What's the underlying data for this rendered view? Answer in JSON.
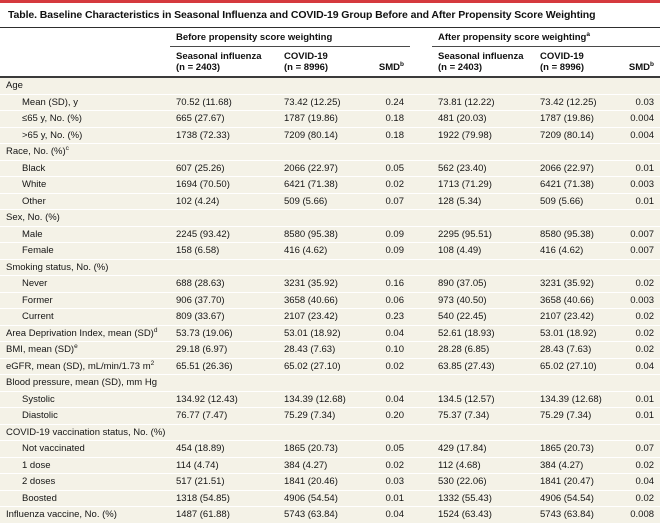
{
  "colors": {
    "accent_red": "#d5393e",
    "row_background": "#f4f2e7",
    "rule_dark": "#3b3b3b"
  },
  "title": "Table. Baseline Characteristics in Seasonal Influenza and COVID-19 Group Before and After Propensity Score Weighting",
  "header": {
    "before_group": "Before propensity score weighting",
    "after_group": "After propensity score weighting",
    "after_group_sup": "a",
    "influenza_line1": "Seasonal influenza",
    "influenza_line2": "(n = 2403)",
    "covid_line1": "COVID-19",
    "covid_line2": "(n = 8996)",
    "smd": "SMD",
    "smd_sup": "b"
  },
  "rows": [
    {
      "type": "section",
      "label": "Age"
    },
    {
      "type": "data",
      "indent": 1,
      "label": "Mean (SD), y",
      "values": [
        "70.52 (11.68)",
        "73.42 (12.25)",
        "0.24",
        "73.81 (12.22)",
        "73.42 (12.25)",
        "0.03"
      ]
    },
    {
      "type": "data",
      "indent": 1,
      "label": "≤65 y, No. (%)",
      "values": [
        "665 (27.67)",
        "1787 (19.86)",
        "0.18",
        "481 (20.03)",
        "1787 (19.86)",
        "0.004"
      ]
    },
    {
      "type": "data",
      "indent": 1,
      "label": ">65 y, No. (%)",
      "values": [
        "1738 (72.33)",
        "7209 (80.14)",
        "0.18",
        "1922 (79.98)",
        "7209 (80.14)",
        "0.004"
      ]
    },
    {
      "type": "section",
      "label": "Race, No. (%)",
      "sup": "c"
    },
    {
      "type": "data",
      "indent": 1,
      "label": "Black",
      "values": [
        "607 (25.26)",
        "2066 (22.97)",
        "0.05",
        "562 (23.40)",
        "2066 (22.97)",
        "0.01"
      ]
    },
    {
      "type": "data",
      "indent": 1,
      "label": "White",
      "values": [
        "1694 (70.50)",
        "6421 (71.38)",
        "0.02",
        "1713 (71.29)",
        "6421 (71.38)",
        "0.003"
      ]
    },
    {
      "type": "data",
      "indent": 1,
      "label": "Other",
      "values": [
        "102 (4.24)",
        "509 (5.66)",
        "0.07",
        "128 (5.34)",
        "509 (5.66)",
        "0.01"
      ]
    },
    {
      "type": "section",
      "label": "Sex, No. (%)"
    },
    {
      "type": "data",
      "indent": 1,
      "label": "Male",
      "values": [
        "2245 (93.42)",
        "8580 (95.38)",
        "0.09",
        "2295 (95.51)",
        "8580 (95.38)",
        "0.007"
      ]
    },
    {
      "type": "data",
      "indent": 1,
      "label": "Female",
      "values": [
        "158 (6.58)",
        "416 (4.62)",
        "0.09",
        "108 (4.49)",
        "416 (4.62)",
        "0.007"
      ]
    },
    {
      "type": "section",
      "label": "Smoking status, No. (%)"
    },
    {
      "type": "data",
      "indent": 1,
      "label": "Never",
      "values": [
        "688 (28.63)",
        "3231 (35.92)",
        "0.16",
        "890 (37.05)",
        "3231 (35.92)",
        "0.02"
      ]
    },
    {
      "type": "data",
      "indent": 1,
      "label": "Former",
      "values": [
        "906 (37.70)",
        "3658 (40.66)",
        "0.06",
        "973 (40.50)",
        "3658 (40.66)",
        "0.003"
      ]
    },
    {
      "type": "data",
      "indent": 1,
      "label": "Current",
      "values": [
        "809 (33.67)",
        "2107 (23.42)",
        "0.23",
        "540 (22.45)",
        "2107 (23.42)",
        "0.02"
      ]
    },
    {
      "type": "data",
      "indent": 0,
      "label": "Area Deprivation Index, mean (SD)",
      "sup": "d",
      "values": [
        "53.73 (19.06)",
        "53.01 (18.92)",
        "0.04",
        "52.61 (18.93)",
        "53.01 (18.92)",
        "0.02"
      ]
    },
    {
      "type": "data",
      "indent": 0,
      "label": "BMI, mean (SD)",
      "sup": "e",
      "values": [
        "29.18 (6.97)",
        "28.43 (7.63)",
        "0.10",
        "28.28 (6.85)",
        "28.43 (7.63)",
        "0.02"
      ]
    },
    {
      "type": "data",
      "indent": 0,
      "label": "eGFR, mean (SD), mL/min/1.73 m",
      "sup": "2",
      "values": [
        "65.51 (26.36)",
        "65.02 (27.10)",
        "0.02",
        "63.85 (27.43)",
        "65.02 (27.10)",
        "0.04"
      ]
    },
    {
      "type": "section",
      "label": "Blood pressure, mean (SD), mm Hg"
    },
    {
      "type": "data",
      "indent": 1,
      "label": "Systolic",
      "values": [
        "134.92 (12.43)",
        "134.39 (12.68)",
        "0.04",
        "134.5 (12.57)",
        "134.39 (12.68)",
        "0.01"
      ]
    },
    {
      "type": "data",
      "indent": 1,
      "label": "Diastolic",
      "values": [
        "76.77 (7.47)",
        "75.29 (7.34)",
        "0.20",
        "75.37 (7.34)",
        "75.29 (7.34)",
        "0.01"
      ]
    },
    {
      "type": "section",
      "label": "COVID-19 vaccination status, No. (%)"
    },
    {
      "type": "data",
      "indent": 1,
      "label": "Not vaccinated",
      "values": [
        "454 (18.89)",
        "1865 (20.73)",
        "0.05",
        "429 (17.84)",
        "1865 (20.73)",
        "0.07"
      ]
    },
    {
      "type": "data",
      "indent": 1,
      "label": "1 dose",
      "values": [
        "114 (4.74)",
        "384 (4.27)",
        "0.02",
        "112 (4.68)",
        "384 (4.27)",
        "0.02"
      ]
    },
    {
      "type": "data",
      "indent": 1,
      "label": "2 doses",
      "values": [
        "517 (21.51)",
        "1841 (20.46)",
        "0.03",
        "530 (22.06)",
        "1841 (20.47)",
        "0.04"
      ]
    },
    {
      "type": "data",
      "indent": 1,
      "label": "Boosted",
      "values": [
        "1318 (54.85)",
        "4906 (54.54)",
        "0.01",
        "1332 (55.43)",
        "4906 (54.54)",
        "0.02"
      ]
    },
    {
      "type": "data",
      "indent": 0,
      "label": "Influenza vaccine, No. (%)",
      "values": [
        "1487 (61.88)",
        "5743 (63.84)",
        "0.04",
        "1524 (63.43)",
        "5743 (63.84)",
        "0.008"
      ]
    }
  ]
}
